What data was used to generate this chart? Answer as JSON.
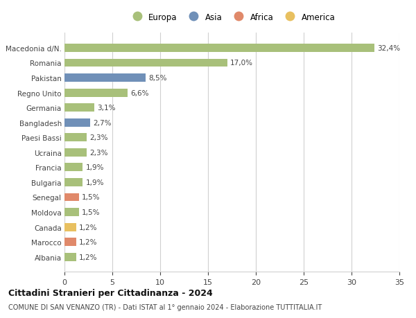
{
  "categories": [
    "Albania",
    "Marocco",
    "Canada",
    "Moldova",
    "Senegal",
    "Bulgaria",
    "Francia",
    "Ucraina",
    "Paesi Bassi",
    "Bangladesh",
    "Germania",
    "Regno Unito",
    "Pakistan",
    "Romania",
    "Macedonia d/N."
  ],
  "values": [
    1.2,
    1.2,
    1.2,
    1.5,
    1.5,
    1.9,
    1.9,
    2.3,
    2.3,
    2.7,
    3.1,
    6.6,
    8.5,
    17.0,
    32.4
  ],
  "labels": [
    "1,2%",
    "1,2%",
    "1,2%",
    "1,5%",
    "1,5%",
    "1,9%",
    "1,9%",
    "2,3%",
    "2,3%",
    "2,7%",
    "3,1%",
    "6,6%",
    "8,5%",
    "17,0%",
    "32,4%"
  ],
  "colors": [
    "#a8c07a",
    "#e0896a",
    "#e8c060",
    "#a8c07a",
    "#e0896a",
    "#a8c07a",
    "#a8c07a",
    "#a8c07a",
    "#a8c07a",
    "#7090b8",
    "#a8c07a",
    "#a8c07a",
    "#7090b8",
    "#a8c07a",
    "#a8c07a"
  ],
  "legend_labels": [
    "Europa",
    "Asia",
    "Africa",
    "America"
  ],
  "legend_colors": [
    "#a8c07a",
    "#7090b8",
    "#e0896a",
    "#e8c060"
  ],
  "title": "Cittadini Stranieri per Cittadinanza - 2024",
  "subtitle": "COMUNE DI SAN VENANZO (TR) - Dati ISTAT al 1° gennaio 2024 - Elaborazione TUTTITALIA.IT",
  "xlim": [
    0,
    35
  ],
  "xticks": [
    0,
    5,
    10,
    15,
    20,
    25,
    30,
    35
  ],
  "bg_color": "#ffffff",
  "grid_color": "#d0d0d0",
  "bar_height": 0.55
}
